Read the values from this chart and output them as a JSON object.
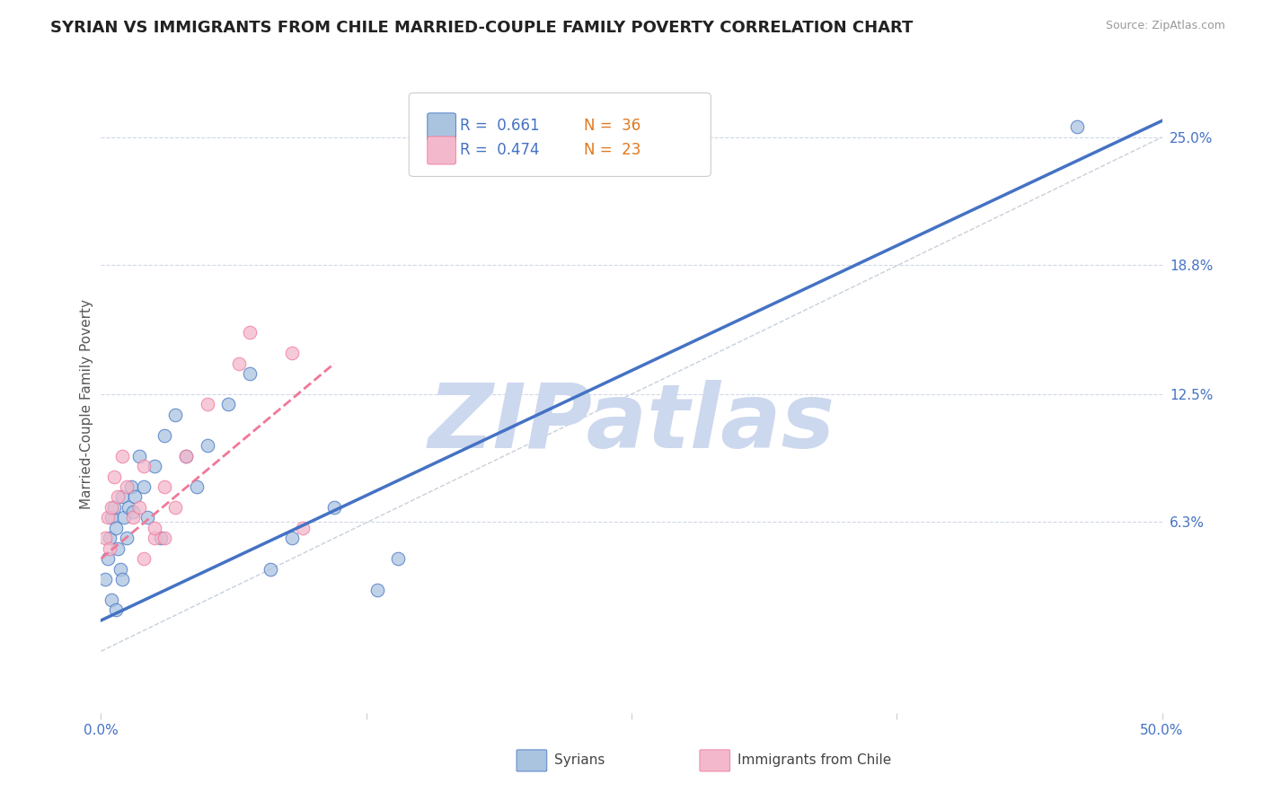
{
  "title": "SYRIAN VS IMMIGRANTS FROM CHILE MARRIED-COUPLE FAMILY POVERTY CORRELATION CHART",
  "source": "Source: ZipAtlas.com",
  "ylabel": "Married-Couple Family Poverty",
  "xlim": [
    0.0,
    50.0
  ],
  "ylim": [
    -3.0,
    27.0
  ],
  "xtick_positions": [
    0.0,
    12.5,
    25.0,
    37.5,
    50.0
  ],
  "xtick_labels": [
    "0.0%",
    "",
    "",
    "",
    "50.0%"
  ],
  "ytick_right_labels": [
    "25.0%",
    "18.8%",
    "12.5%",
    "6.3%"
  ],
  "ytick_right_values": [
    25.0,
    18.8,
    12.5,
    6.3
  ],
  "grid_color": "#d0d8e8",
  "background_color": "#ffffff",
  "watermark": "ZIPatlas",
  "watermark_color": "#ccd8ee",
  "legend_R1": "0.661",
  "legend_N1": "36",
  "legend_R2": "0.474",
  "legend_N2": "23",
  "series1_color": "#aac4e0",
  "series2_color": "#f4b8cc",
  "line1_color": "#4472c4",
  "line2_color": "#f07898",
  "ref_line_color": "#c8d0dc",
  "syrians_x": [
    0.2,
    0.3,
    0.4,
    0.5,
    0.5,
    0.6,
    0.7,
    0.7,
    0.8,
    0.9,
    1.0,
    1.0,
    1.1,
    1.2,
    1.3,
    1.4,
    1.5,
    1.6,
    1.8,
    2.0,
    2.2,
    2.5,
    2.8,
    3.0,
    3.5,
    4.0,
    4.5,
    5.0,
    6.0,
    7.0,
    8.0,
    9.0,
    11.0,
    13.0,
    14.0,
    46.0
  ],
  "syrians_y": [
    3.5,
    4.5,
    5.5,
    6.5,
    2.5,
    7.0,
    6.0,
    2.0,
    5.0,
    4.0,
    3.5,
    7.5,
    6.5,
    5.5,
    7.0,
    8.0,
    6.8,
    7.5,
    9.5,
    8.0,
    6.5,
    9.0,
    5.5,
    10.5,
    11.5,
    9.5,
    8.0,
    10.0,
    12.0,
    13.5,
    4.0,
    5.5,
    7.0,
    3.0,
    4.5,
    25.5
  ],
  "chile_x": [
    0.2,
    0.3,
    0.4,
    0.5,
    0.6,
    0.8,
    1.0,
    1.2,
    1.5,
    1.8,
    2.0,
    2.5,
    3.0,
    3.5,
    4.0,
    5.0,
    6.5,
    7.0,
    9.0,
    2.0,
    2.5,
    3.0,
    9.5
  ],
  "chile_y": [
    5.5,
    6.5,
    5.0,
    7.0,
    8.5,
    7.5,
    9.5,
    8.0,
    6.5,
    7.0,
    9.0,
    5.5,
    8.0,
    7.0,
    9.5,
    12.0,
    14.0,
    15.5,
    14.5,
    4.5,
    6.0,
    5.5,
    6.0
  ],
  "blue_line": [
    0.0,
    50.0,
    1.5,
    25.8
  ],
  "pink_line": [
    0.0,
    11.0,
    4.5,
    14.0
  ],
  "diag_line": [
    0.0,
    50.0,
    0.0,
    25.0
  ],
  "title_fontsize": 13,
  "axis_label_fontsize": 11,
  "tick_fontsize": 11,
  "bottom_legend_labels": [
    "Syrians",
    "Immigrants from Chile"
  ],
  "legend_color_R": "#4472c4",
  "legend_color_N": "#e07820"
}
